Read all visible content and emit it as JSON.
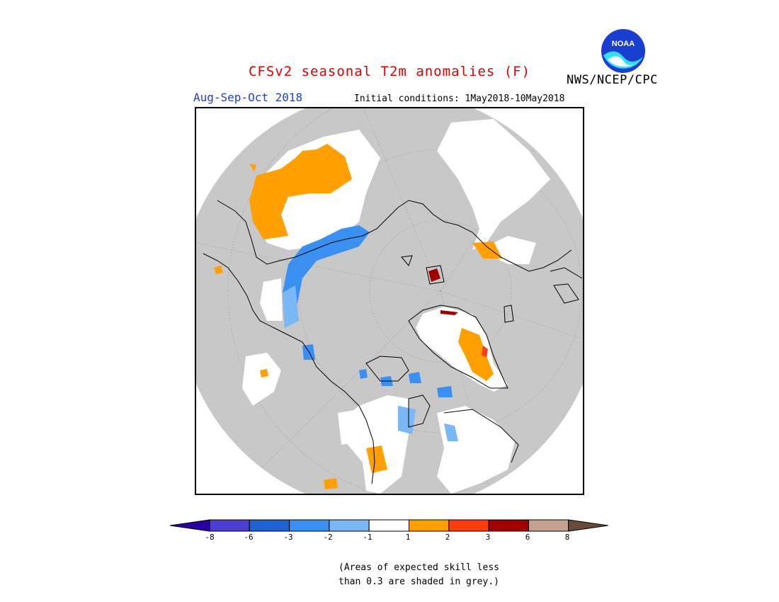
{
  "title": "CFSv2 seasonal T2m anomalies (F)",
  "organization": "NWS/NCEP/CPC",
  "logo_text": "NOAA",
  "period": "Aug-Sep-Oct 2018",
  "initial_conditions": "Initial conditions: 1May2018-10May2018",
  "colorbar": {
    "ticks": [
      "-8",
      "-6",
      "-3",
      "-2",
      "-1",
      "1",
      "2",
      "3",
      "6",
      "8"
    ],
    "colors": [
      "#2a00a0",
      "#4a3fd0",
      "#1f62d4",
      "#3a90f0",
      "#7ab8f5",
      "#ffffff",
      "#ffa000",
      "#ff3c10",
      "#a00000",
      "#c8a090",
      "#6b4a3a"
    ]
  },
  "map": {
    "background_grey": "#c8c8c8",
    "projection": "north-polar-stereographic",
    "regions": [
      {
        "name": "central-asia-warm",
        "color": "#ffa000"
      },
      {
        "name": "russia-cool-band",
        "color": "#3a90f0"
      },
      {
        "name": "greenland-warm",
        "color": "#ffa000"
      },
      {
        "name": "greenland-hot-spot",
        "color": "#ff3c10"
      },
      {
        "name": "hudson-bay-cool",
        "color": "#7ab8f5"
      },
      {
        "name": "canada-cool-patches",
        "color": "#3a90f0"
      },
      {
        "name": "us-northern-plains-warm",
        "color": "#ffa000"
      },
      {
        "name": "europe-warm-patch",
        "color": "#ffa000"
      },
      {
        "name": "svalbard-hot",
        "color": "#a00000"
      }
    ]
  },
  "note_line1": "(Areas of expected skill less",
  "note_line2": "than 0.3 are shaded in grey.)"
}
